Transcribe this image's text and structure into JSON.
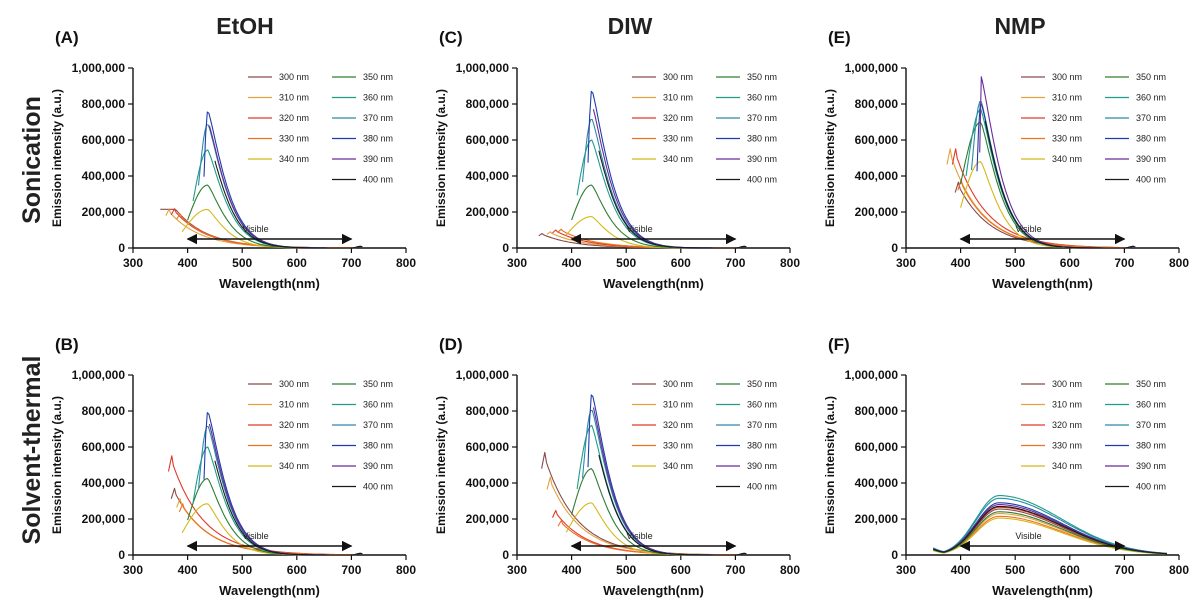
{
  "chart_data": {
    "columns": [
      "EtOH",
      "DIW",
      "NMP"
    ],
    "rows": [
      "Sonication",
      "Solvent-thermal"
    ],
    "legend": [
      "300 nm",
      "310 nm",
      "320 nm",
      "330 nm",
      "340 nm",
      "350 nm",
      "360 nm",
      "370 nm",
      "380 nm",
      "390 nm",
      "400 nm"
    ],
    "colors": {
      "300 nm": "#8b4a4a",
      "310 nm": "#e3a23c",
      "320 nm": "#e03a2a",
      "330 nm": "#f07020",
      "340 nm": "#d4b81a",
      "350 nm": "#2e7d32",
      "360 nm": "#1f9d8a",
      "370 nm": "#2a8aa8",
      "380 nm": "#1e3da8",
      "390 nm": "#6a2a96",
      "400 nm": "#1a1a1a"
    },
    "axes": {
      "xlabel": "Wavelength(nm)",
      "ylabel": "Emission intensity (a.u.)",
      "xlim": [
        300,
        800
      ],
      "ylim": [
        0,
        1000000
      ],
      "xticks": [
        "300",
        "400",
        "500",
        "600",
        "700",
        "800"
      ],
      "yticks": [
        "0",
        "200,000",
        "400,000",
        "600,000",
        "800,000",
        "1,000,000"
      ]
    },
    "annotation": {
      "text": "Visible",
      "from": 400,
      "to": 700,
      "y": 50000
    },
    "panels": [
      {
        "label": "(A)",
        "solvent": "EtOH",
        "method": "Sonication",
        "type": "line",
        "series": [
          {
            "name": "300 nm",
            "peak": 215000,
            "start": 350,
            "shape": "uv",
            "mode": "plateau"
          },
          {
            "name": "310 nm",
            "peak": 225000,
            "start": 360,
            "shape": "uv"
          },
          {
            "name": "320 nm",
            "peak": 230000,
            "start": 370,
            "shape": "uv"
          },
          {
            "name": "330 nm",
            "peak": 200000,
            "start": 380,
            "shape": "uv"
          },
          {
            "name": "340 nm",
            "peak": 215000,
            "start": 390,
            "shape": "blue"
          },
          {
            "name": "350 nm",
            "peak": 350000,
            "start": 400,
            "shape": "blue"
          },
          {
            "name": "360 nm",
            "peak": 545000,
            "start": 410,
            "shape": "blue"
          },
          {
            "name": "370 nm",
            "peak": 690000,
            "start": 420,
            "shape": "blue"
          },
          {
            "name": "380 nm",
            "peak": 765000,
            "start": 430,
            "shape": "blue"
          },
          {
            "name": "390 nm",
            "peak": 705000,
            "start": 440,
            "shape": "blue"
          },
          {
            "name": "400 nm",
            "peak": 610000,
            "start": 450,
            "shape": "blue"
          }
        ]
      },
      {
        "label": "(B)",
        "solvent": "EtOH",
        "method": "Solvent-thermal",
        "type": "line",
        "series": [
          {
            "name": "300 nm",
            "peak": 390000,
            "start": 370,
            "shape": "uv"
          },
          {
            "name": "310 nm",
            "peak": 330000,
            "start": 380,
            "shape": "uv"
          },
          {
            "name": "320 nm",
            "peak": 580000,
            "start": 365,
            "shape": "uv"
          },
          {
            "name": "330 nm",
            "peak": 300000,
            "start": 385,
            "shape": "uv"
          },
          {
            "name": "340 nm",
            "peak": 285000,
            "start": 390,
            "shape": "blue"
          },
          {
            "name": "350 nm",
            "peak": 425000,
            "start": 400,
            "shape": "blue"
          },
          {
            "name": "360 nm",
            "peak": 600000,
            "start": 410,
            "shape": "blue"
          },
          {
            "name": "370 nm",
            "peak": 720000,
            "start": 420,
            "shape": "blue"
          },
          {
            "name": "380 nm",
            "peak": 800000,
            "start": 430,
            "shape": "blue"
          },
          {
            "name": "390 nm",
            "peak": 755000,
            "start": 440,
            "shape": "blue"
          },
          {
            "name": "400 nm",
            "peak": 660000,
            "start": 450,
            "shape": "blue"
          }
        ]
      },
      {
        "label": "(C)",
        "solvent": "DIW",
        "method": "Sonication",
        "type": "line",
        "series": [
          {
            "name": "300 nm",
            "peak": 85000,
            "start": 340,
            "shape": "uv"
          },
          {
            "name": "310 nm",
            "peak": 95000,
            "start": 355,
            "shape": "uv"
          },
          {
            "name": "320 nm",
            "peak": 105000,
            "start": 365,
            "shape": "uv"
          },
          {
            "name": "330 nm",
            "peak": 110000,
            "start": 375,
            "shape": "uv"
          },
          {
            "name": "340 nm",
            "peak": 175000,
            "start": 390,
            "shape": "blue"
          },
          {
            "name": "350 nm",
            "peak": 350000,
            "start": 400,
            "shape": "blue"
          },
          {
            "name": "360 nm",
            "peak": 600000,
            "start": 410,
            "shape": "blue"
          },
          {
            "name": "370 nm",
            "peak": 720000,
            "start": 420,
            "shape": "blue"
          },
          {
            "name": "380 nm",
            "peak": 880000,
            "start": 430,
            "shape": "blue"
          },
          {
            "name": "390 nm",
            "peak": 800000,
            "start": 440,
            "shape": "blue"
          },
          {
            "name": "400 nm",
            "peak": 680000,
            "start": 450,
            "shape": "blue"
          }
        ]
      },
      {
        "label": "(D)",
        "solvent": "DIW",
        "method": "Solvent-thermal",
        "type": "line",
        "series": [
          {
            "name": "300 nm",
            "peak": 600000,
            "start": 345,
            "shape": "uv"
          },
          {
            "name": "310 nm",
            "peak": 455000,
            "start": 355,
            "shape": "uv"
          },
          {
            "name": "320 nm",
            "peak": 260000,
            "start": 365,
            "shape": "uv"
          },
          {
            "name": "330 nm",
            "peak": 200000,
            "start": 375,
            "shape": "uv"
          },
          {
            "name": "340 nm",
            "peak": 290000,
            "start": 390,
            "shape": "blue"
          },
          {
            "name": "350 nm",
            "peak": 480000,
            "start": 400,
            "shape": "blue"
          },
          {
            "name": "360 nm",
            "peak": 720000,
            "start": 410,
            "shape": "blue"
          },
          {
            "name": "370 nm",
            "peak": 810000,
            "start": 420,
            "shape": "blue"
          },
          {
            "name": "380 nm",
            "peak": 900000,
            "start": 430,
            "shape": "blue"
          },
          {
            "name": "390 nm",
            "peak": 850000,
            "start": 440,
            "shape": "blue"
          },
          {
            "name": "400 nm",
            "peak": 700000,
            "start": 450,
            "shape": "blue"
          }
        ]
      },
      {
        "label": "(E)",
        "solvent": "NMP",
        "method": "Sonication",
        "type": "line",
        "series": [
          {
            "name": "300 nm",
            "peak": 385000,
            "start": 390,
            "shape": "uv"
          },
          {
            "name": "310 nm",
            "peak": 580000,
            "start": 375,
            "shape": "uv"
          },
          {
            "name": "320 nm",
            "peak": 580000,
            "start": 385,
            "shape": "uv"
          },
          {
            "name": "330 nm",
            "peak": 400000,
            "start": 395,
            "shape": "uv"
          },
          {
            "name": "340 nm",
            "peak": 480000,
            "start": 400,
            "shape": "blue"
          },
          {
            "name": "350 nm",
            "peak": 700000,
            "start": 400,
            "shape": "blue"
          },
          {
            "name": "360 nm",
            "peak": 770000,
            "start": 410,
            "shape": "blue"
          },
          {
            "name": "370 nm",
            "peak": 820000,
            "start": 420,
            "shape": "blue"
          },
          {
            "name": "380 nm",
            "peak": 810000,
            "start": 430,
            "shape": "blue"
          },
          {
            "name": "390 nm",
            "peak": 960000,
            "start": 435,
            "shape": "blue"
          },
          {
            "name": "400 nm",
            "peak": 800000,
            "start": 445,
            "shape": "blue"
          }
        ]
      },
      {
        "label": "(F)",
        "solvent": "NMP",
        "method": "Solvent-thermal",
        "type": "line",
        "series": [
          {
            "name": "300 nm",
            "peak": 255000,
            "start": 350,
            "shape": "broad"
          },
          {
            "name": "310 nm",
            "peak": 230000,
            "start": 350,
            "shape": "broad"
          },
          {
            "name": "320 nm",
            "peak": 265000,
            "start": 350,
            "shape": "broad"
          },
          {
            "name": "330 nm",
            "peak": 215000,
            "start": 350,
            "shape": "broad"
          },
          {
            "name": "340 nm",
            "peak": 205000,
            "start": 350,
            "shape": "broad"
          },
          {
            "name": "350 nm",
            "peak": 240000,
            "start": 350,
            "shape": "broad"
          },
          {
            "name": "360 nm",
            "peak": 330000,
            "start": 350,
            "shape": "broad"
          },
          {
            "name": "370 nm",
            "peak": 315000,
            "start": 350,
            "shape": "broad"
          },
          {
            "name": "380 nm",
            "peak": 290000,
            "start": 350,
            "shape": "broad"
          },
          {
            "name": "390 nm",
            "peak": 280000,
            "start": 350,
            "shape": "broad"
          },
          {
            "name": "400 nm",
            "peak": 270000,
            "start": 350,
            "shape": "broad"
          }
        ]
      }
    ]
  }
}
